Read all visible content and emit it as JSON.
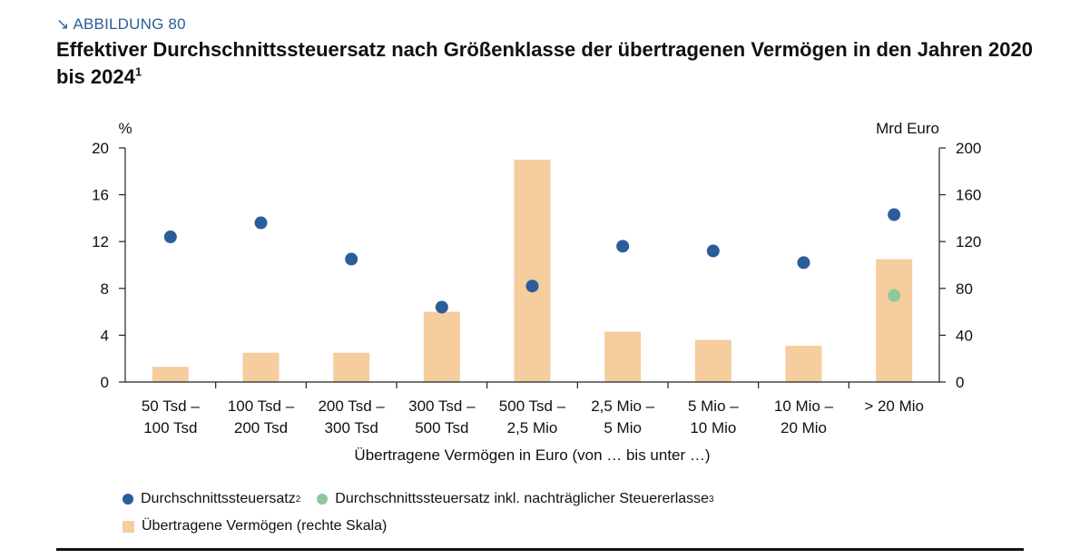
{
  "header": {
    "kicker": "ABBILDUNG 80",
    "title": "Effektiver Durchschnittssteuersatz nach Größenklasse der übertragenen Vermögen in den Jahren 2020 bis 2024",
    "title_footnote": "1"
  },
  "legend": {
    "items": [
      {
        "label": "Durchschnittssteuersatz",
        "footnote": "2",
        "color": "#2a5d9a",
        "shape": "dot"
      },
      {
        "label": "Durchschnittssteuersatz inkl. nachträglicher Steuererlasse",
        "footnote": "3",
        "color": "#8fc89a",
        "shape": "dot"
      },
      {
        "label": "Übertragene Vermögen (rechte Skala)",
        "footnote": "",
        "color": "#f5cd9e",
        "shape": "rect"
      }
    ]
  },
  "chart_data": {
    "type": "bar",
    "categories": [
      [
        "50 Tsd –",
        "100 Tsd"
      ],
      [
        "100 Tsd –",
        "200 Tsd"
      ],
      [
        "200 Tsd –",
        "300 Tsd"
      ],
      [
        "300 Tsd –",
        "500 Tsd"
      ],
      [
        "500 Tsd –",
        "2,5 Mio"
      ],
      [
        "2,5 Mio –",
        "5 Mio"
      ],
      [
        "5 Mio –",
        "10 Mio"
      ],
      [
        "10 Mio –",
        "20 Mio"
      ],
      [
        "> 20 Mio"
      ]
    ],
    "xlabel": "Übertragene Vermögen in Euro (von … bis unter …)",
    "y_left": {
      "unit": "%",
      "ylim": [
        0,
        20
      ],
      "ticks": [
        0,
        4,
        8,
        12,
        16,
        20
      ]
    },
    "y_right": {
      "unit": "Mrd Euro",
      "ylim": [
        0,
        200
      ],
      "ticks": [
        0,
        40,
        80,
        120,
        160,
        200
      ]
    },
    "series": [
      {
        "name": "Übertragene Vermögen (rechte Skala)",
        "type": "bar",
        "axis": "right",
        "color": "#f5cd9e",
        "values": [
          13,
          25,
          25,
          60,
          190,
          43,
          36,
          31,
          105
        ]
      },
      {
        "name": "Durchschnittssteuersatz",
        "type": "scatter",
        "axis": "left",
        "color": "#2a5d9a",
        "values": [
          12.4,
          13.6,
          10.5,
          6.4,
          8.2,
          11.6,
          11.2,
          10.2,
          14.3
        ]
      },
      {
        "name": "Durchschnittssteuersatz inkl. nachträglicher Steuererlasse",
        "type": "scatter",
        "axis": "left",
        "color": "#8fc89a",
        "values": [
          null,
          null,
          null,
          null,
          null,
          null,
          null,
          null,
          7.4
        ]
      }
    ],
    "grid": false
  }
}
